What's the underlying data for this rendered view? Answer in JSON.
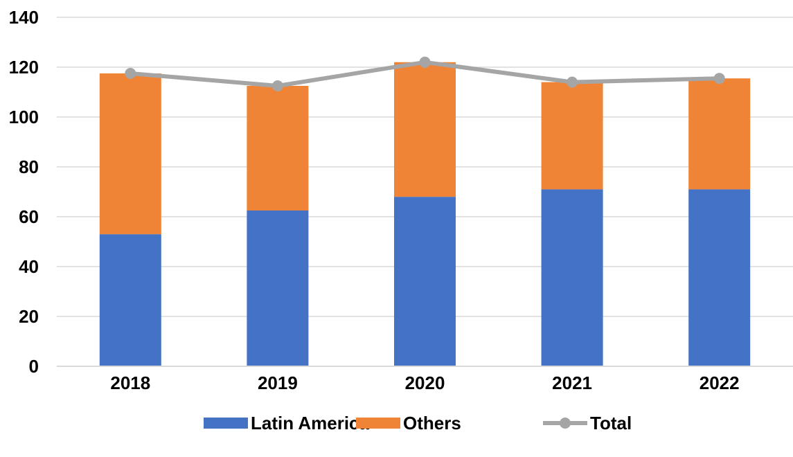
{
  "chart_data": {
    "type": "bar",
    "stacked": true,
    "title": "",
    "xlabel": "",
    "ylabel": "",
    "categories": [
      "2018",
      "2019",
      "2020",
      "2021",
      "2022"
    ],
    "ylim": [
      0,
      140
    ],
    "yticks": [
      0,
      20,
      40,
      60,
      80,
      100,
      120,
      140
    ],
    "grid": true,
    "legend_position": "bottom",
    "series": [
      {
        "name": "Latin America",
        "kind": "bar",
        "color": "#4472C4",
        "values": [
          53,
          62.5,
          68,
          71,
          71
        ]
      },
      {
        "name": "Others",
        "kind": "bar",
        "color": "#F08436",
        "values": [
          64.5,
          50,
          54,
          43,
          44.5
        ]
      },
      {
        "name": "Total",
        "kind": "line",
        "color": "#A5A5A5",
        "values": [
          117.5,
          112.5,
          122,
          114,
          115.5
        ]
      }
    ]
  }
}
